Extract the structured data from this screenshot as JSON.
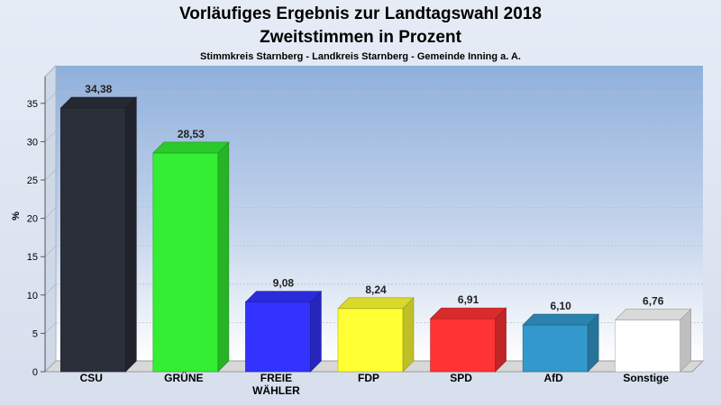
{
  "chart_data": {
    "type": "bar",
    "title": "Vorläufiges Ergebnis zur Landtagswahl 2018",
    "subtitle": "Zweitstimmen in Prozent",
    "subsubtitle": "Stimmkreis Starnberg - Landkreis Starnberg - Gemeinde Inning a. A.",
    "xlabel": "",
    "ylabel": "%",
    "ylim": [
      0,
      38.5
    ],
    "yticks": [
      0,
      5,
      10,
      15,
      20,
      25,
      30,
      35
    ],
    "grid": true,
    "legend": "none",
    "categories": [
      "CSU",
      "GRÜNE",
      "FREIE\nWÄHLER",
      "FDP",
      "SPD",
      "AfD",
      "Sonstige"
    ],
    "values": [
      34.38,
      28.53,
      9.08,
      8.24,
      6.91,
      6.1,
      6.76
    ],
    "value_labels": [
      "34,38",
      "28,53",
      "9,08",
      "8,24",
      "6,91",
      "6,10",
      "6,76"
    ],
    "colors": [
      "#2b2f3a",
      "#33ee33",
      "#3333ff",
      "#ffff33",
      "#ff3333",
      "#3399cc",
      "#ffffff"
    ]
  }
}
